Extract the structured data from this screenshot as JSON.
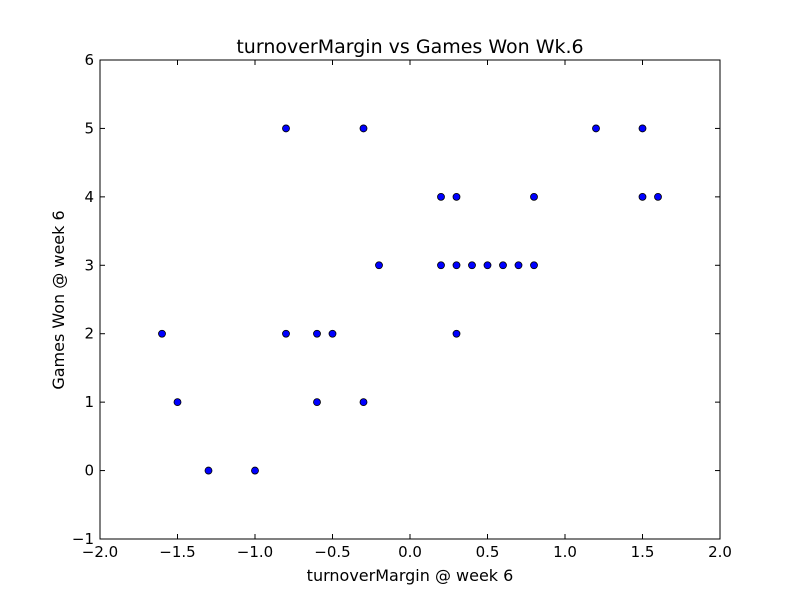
{
  "chart_data": {
    "type": "scatter",
    "title": "turnoverMargin vs Games Won Wk.6",
    "xlabel": "turnoverMargin @ week 6",
    "ylabel": "Games Won @ week 6",
    "xlim": [
      -2.0,
      2.0
    ],
    "ylim": [
      -1,
      6
    ],
    "x_ticks": [
      -2.0,
      -1.5,
      -1.0,
      -0.5,
      0.0,
      0.5,
      1.0,
      1.5,
      2.0
    ],
    "x_tick_labels": [
      "−2.0",
      "−1.5",
      "−1.0",
      "−0.5",
      "0.0",
      "0.5",
      "1.0",
      "1.5",
      "2.0"
    ],
    "y_ticks": [
      -1,
      0,
      1,
      2,
      3,
      4,
      5,
      6
    ],
    "y_tick_labels": [
      "−1",
      "0",
      "1",
      "2",
      "3",
      "4",
      "5",
      "6"
    ],
    "grid": false,
    "marker_color": "#0000ff",
    "marker_edge_color": "#000000",
    "points": [
      {
        "x": -1.6,
        "y": 2
      },
      {
        "x": -1.5,
        "y": 1
      },
      {
        "x": -1.3,
        "y": 0
      },
      {
        "x": -1.0,
        "y": 0
      },
      {
        "x": -0.8,
        "y": 5
      },
      {
        "x": -0.8,
        "y": 2
      },
      {
        "x": -0.6,
        "y": 2
      },
      {
        "x": -0.6,
        "y": 1
      },
      {
        "x": -0.5,
        "y": 2
      },
      {
        "x": -0.3,
        "y": 5
      },
      {
        "x": -0.3,
        "y": 1
      },
      {
        "x": -0.2,
        "y": 3
      },
      {
        "x": 0.2,
        "y": 4
      },
      {
        "x": 0.2,
        "y": 3
      },
      {
        "x": 0.3,
        "y": 4
      },
      {
        "x": 0.3,
        "y": 3
      },
      {
        "x": 0.3,
        "y": 2
      },
      {
        "x": 0.4,
        "y": 3
      },
      {
        "x": 0.5,
        "y": 3
      },
      {
        "x": 0.6,
        "y": 3
      },
      {
        "x": 0.7,
        "y": 3
      },
      {
        "x": 0.8,
        "y": 4
      },
      {
        "x": 0.8,
        "y": 3
      },
      {
        "x": 1.2,
        "y": 5
      },
      {
        "x": 1.5,
        "y": 5
      },
      {
        "x": 1.5,
        "y": 4
      },
      {
        "x": 1.6,
        "y": 4
      }
    ]
  }
}
